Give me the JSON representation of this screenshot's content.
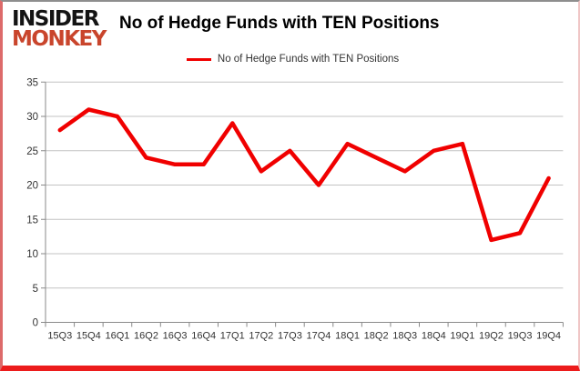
{
  "logo": {
    "line1": "INSIDER",
    "line2": "MONKEY"
  },
  "header": {
    "title": "No of Hedge Funds with TEN Positions"
  },
  "legend": {
    "label": "No of Hedge Funds with TEN Positions"
  },
  "colors": {
    "series": "#f00000",
    "logo_black": "#141414",
    "logo_red": "#c9452c",
    "grid": "#c3c3c3",
    "axis": "#8a8a8a",
    "tick_text": "#333333",
    "border_bottom": "#ec1c1c"
  },
  "chart_data": {
    "type": "line",
    "title": "No of Hedge Funds with TEN Positions",
    "categories": [
      "15Q3",
      "15Q4",
      "16Q1",
      "16Q2",
      "16Q3",
      "16Q4",
      "17Q1",
      "17Q2",
      "17Q3",
      "17Q4",
      "18Q1",
      "18Q2",
      "18Q3",
      "18Q4",
      "19Q1",
      "19Q2",
      "19Q3",
      "19Q4"
    ],
    "series": [
      {
        "name": "No of Hedge Funds with TEN Positions",
        "values": [
          28,
          31,
          30,
          24,
          23,
          23,
          29,
          22,
          25,
          20,
          26,
          24,
          22,
          25,
          26,
          12,
          13,
          21
        ]
      }
    ],
    "xlabel": "",
    "ylabel": "",
    "ylim": [
      0,
      35
    ],
    "ytick_interval": 5,
    "yticks": [
      0,
      5,
      10,
      15,
      20,
      25,
      30,
      35
    ],
    "grid": true,
    "legend_position": "top-center"
  }
}
